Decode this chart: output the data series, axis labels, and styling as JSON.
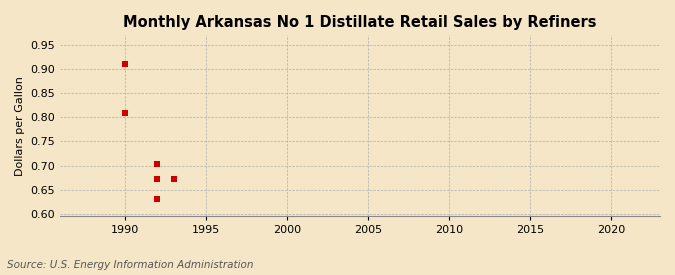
{
  "title": "Monthly Arkansas No 1 Distillate Retail Sales by Refiners",
  "ylabel": "Dollars per Gallon",
  "source": "Source: U.S. Energy Information Administration",
  "background_color": "#f5e6c8",
  "plot_bg_color": "#f5e6c8",
  "xlim": [
    1986,
    2023
  ],
  "ylim": [
    0.595,
    0.97
  ],
  "xticks": [
    1990,
    1995,
    2000,
    2005,
    2010,
    2015,
    2020
  ],
  "yticks": [
    0.6,
    0.65,
    0.7,
    0.75,
    0.8,
    0.85,
    0.9,
    0.95
  ],
  "x_data": [
    1990,
    1990,
    1992,
    1992,
    1992,
    1993,
    1993
  ],
  "y_data": [
    0.91,
    0.81,
    0.703,
    0.672,
    0.631,
    0.672,
    0.672
  ],
  "marker_color": "#cc0000",
  "marker_size": 16
}
